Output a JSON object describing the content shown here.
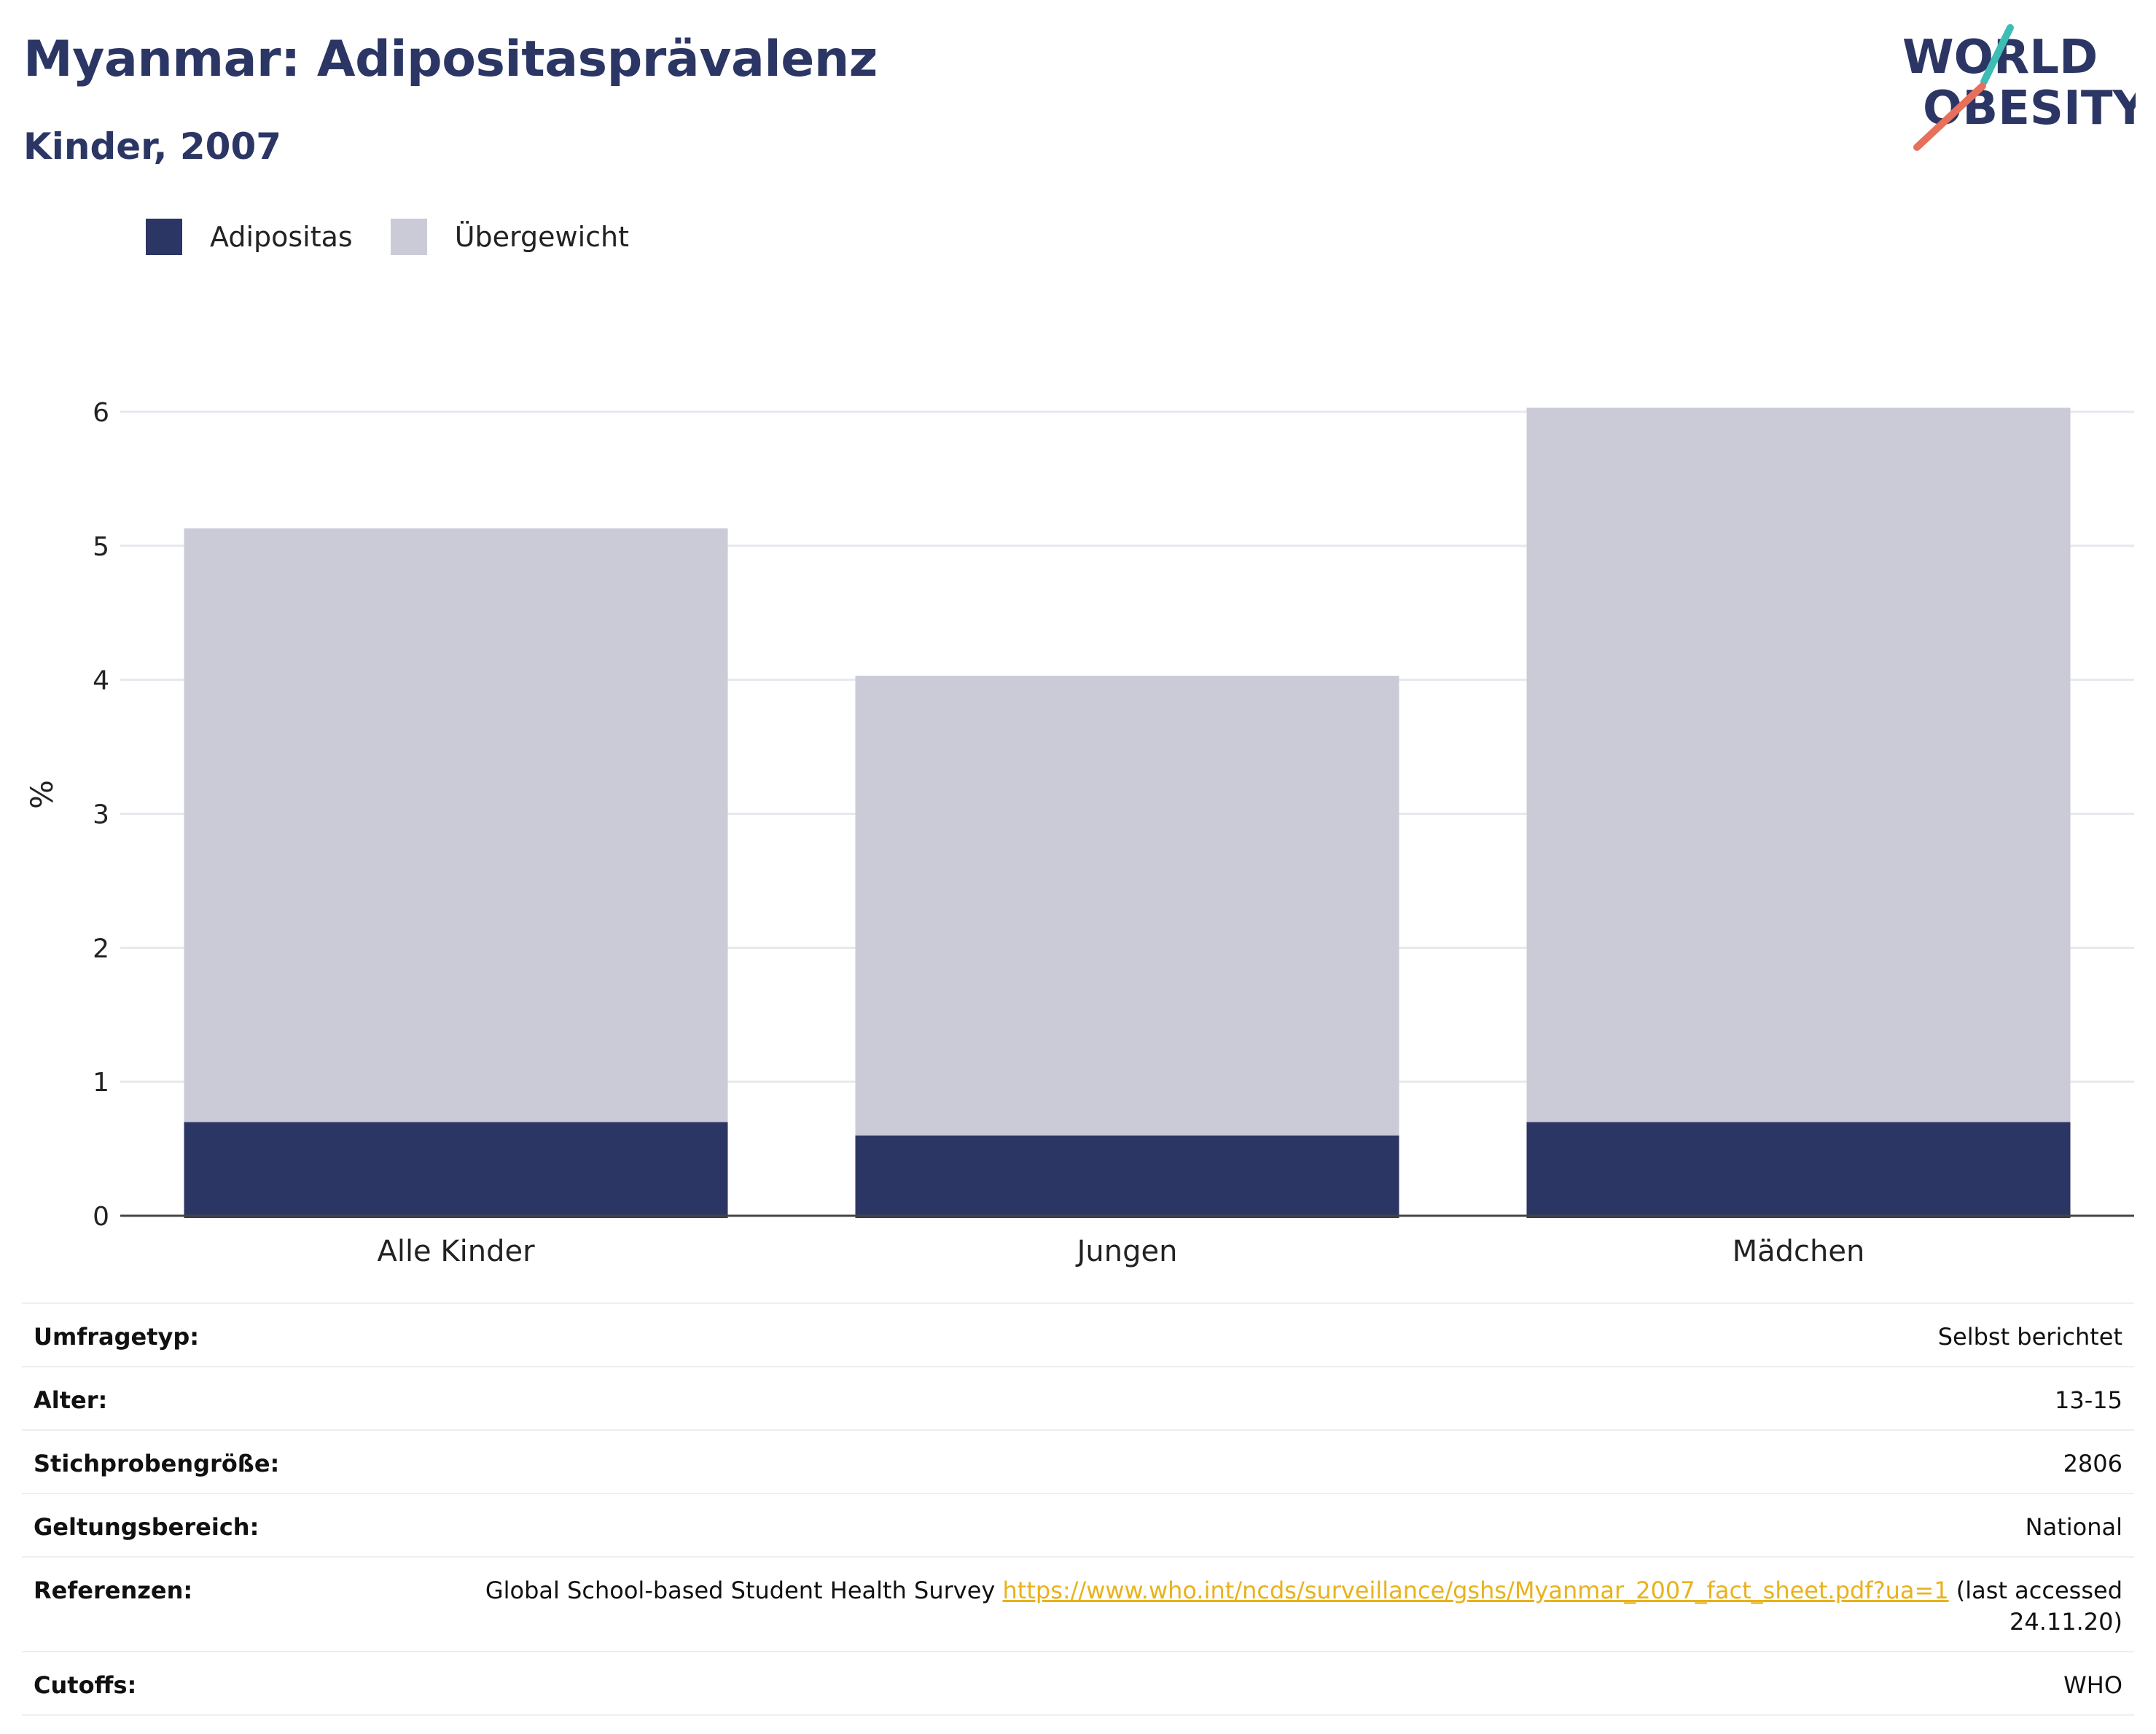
{
  "header": {
    "title": "Myanmar: Adipositasprävalenz",
    "subtitle": "Kinder, 2007"
  },
  "logo": {
    "line1": "WORLD",
    "line2": "OBESITY",
    "slash_colors": [
      "#3ebdb5",
      "#e7705c"
    ],
    "text_color": "#2b3664"
  },
  "colors": {
    "obesity": "#2b3664",
    "overweight": "#cacbd6",
    "link": "#e8b21c"
  },
  "chart_data": {
    "type": "bar",
    "stacked": true,
    "categories": [
      "Alle Kinder",
      "Jungen",
      "Mädchen"
    ],
    "series": [
      {
        "name": "Adipositas",
        "values": [
          0.7,
          0.6,
          0.7
        ]
      },
      {
        "name": "Übergewicht",
        "values": [
          4.43,
          3.43,
          5.33
        ]
      }
    ],
    "ylabel": "%",
    "ylim": [
      0,
      6.3
    ],
    "yticks": [
      0,
      1,
      2,
      3,
      4,
      5,
      6
    ],
    "grid": true,
    "legend_position": "top-left"
  },
  "details": [
    {
      "key": "Umfragetyp:",
      "value": "Selbst berichtet"
    },
    {
      "key": "Alter:",
      "value": "13-15"
    },
    {
      "key": "Stichprobengröße:",
      "value": "2806"
    },
    {
      "key": "Geltungsbereich:",
      "value": "National"
    },
    {
      "key": "Cutoffs:",
      "value": "WHO"
    }
  ],
  "references": {
    "key": "Referenzen:",
    "text_before": "Global School-based Student Health Survey ",
    "link": "https://www.who.int/ncds/surveillance/gshs/Myanmar_2007_fact_sheet.pdf?ua=1",
    "text_after": " (last accessed 24.11.20)"
  }
}
